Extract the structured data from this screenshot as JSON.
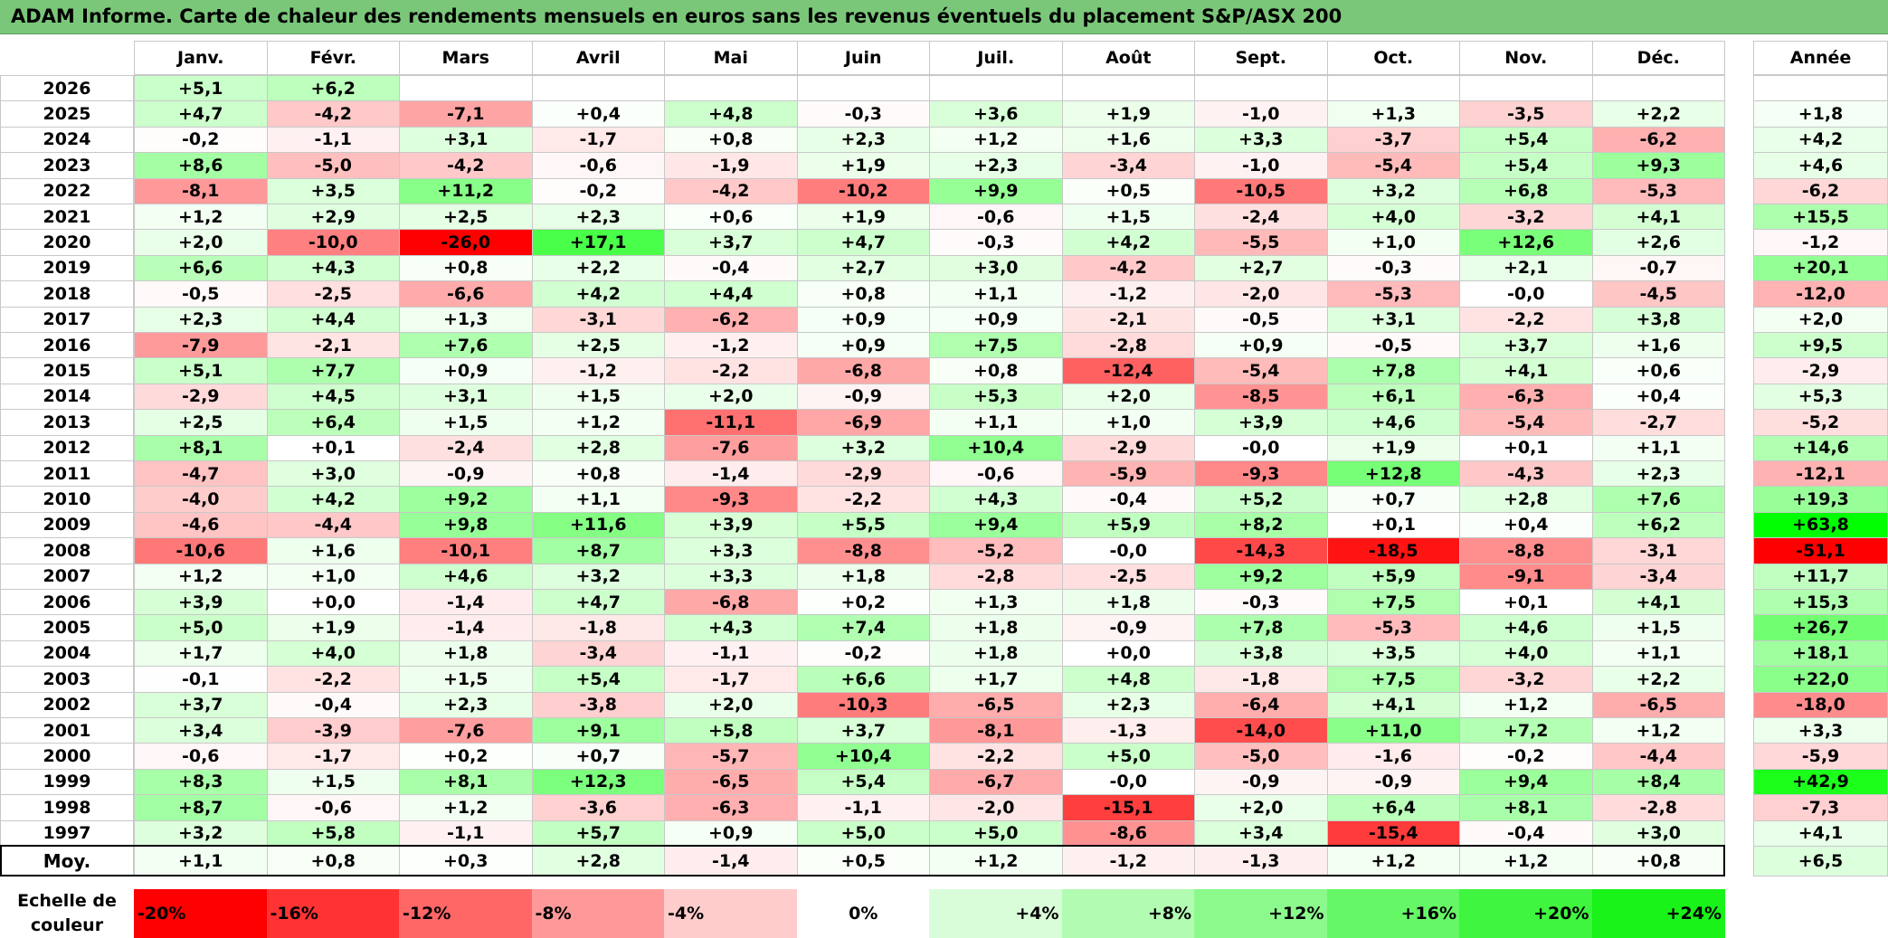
{
  "title": "ADAM Informe. Carte de chaleur des rendements mensuels en euros sans les revenus éventuels du placement S&P/ASX 200",
  "chart_data": {
    "type": "heatmap",
    "months": [
      "Janv.",
      "Févr.",
      "Mars",
      "Avril",
      "Mai",
      "Juin",
      "Juil.",
      "Août",
      "Sept.",
      "Oct.",
      "Nov.",
      "Déc."
    ],
    "annual_label": "Année",
    "average_label": "Moy.",
    "rows": [
      {
        "year": "2026",
        "values": [
          "+5,1",
          "+6,2",
          "",
          "",
          "",
          "",
          "",
          "",
          "",
          "",
          "",
          ""
        ],
        "annual": ""
      },
      {
        "year": "2025",
        "values": [
          "+4,7",
          "-4,2",
          "-7,1",
          "+0,4",
          "+4,8",
          "-0,3",
          "+3,6",
          "+1,9",
          "-1,0",
          "+1,3",
          "-3,5",
          "+2,2"
        ],
        "annual": "+1,8"
      },
      {
        "year": "2024",
        "values": [
          "-0,2",
          "-1,1",
          "+3,1",
          "-1,7",
          "+0,8",
          "+2,3",
          "+1,2",
          "+1,6",
          "+3,3",
          "-3,7",
          "+5,4",
          "-6,2"
        ],
        "annual": "+4,2"
      },
      {
        "year": "2023",
        "values": [
          "+8,6",
          "-5,0",
          "-4,2",
          "-0,6",
          "-1,9",
          "+1,9",
          "+2,3",
          "-3,4",
          "-1,0",
          "-5,4",
          "+5,4",
          "+9,3"
        ],
        "annual": "+4,6"
      },
      {
        "year": "2022",
        "values": [
          "-8,1",
          "+3,5",
          "+11,2",
          "-0,2",
          "-4,2",
          "-10,2",
          "+9,9",
          "+0,5",
          "-10,5",
          "+3,2",
          "+6,8",
          "-5,3"
        ],
        "annual": "-6,2"
      },
      {
        "year": "2021",
        "values": [
          "+1,2",
          "+2,9",
          "+2,5",
          "+2,3",
          "+0,6",
          "+1,9",
          "-0,6",
          "+1,5",
          "-2,4",
          "+4,0",
          "-3,2",
          "+4,1"
        ],
        "annual": "+15,5"
      },
      {
        "year": "2020",
        "values": [
          "+2,0",
          "-10,0",
          "-26,0",
          "+17,1",
          "+3,7",
          "+4,7",
          "-0,3",
          "+4,2",
          "-5,5",
          "+1,0",
          "+12,6",
          "+2,6"
        ],
        "annual": "-1,2"
      },
      {
        "year": "2019",
        "values": [
          "+6,6",
          "+4,3",
          "+0,8",
          "+2,2",
          "-0,4",
          "+2,7",
          "+3,0",
          "-4,2",
          "+2,7",
          "-0,3",
          "+2,1",
          "-0,7"
        ],
        "annual": "+20,1"
      },
      {
        "year": "2018",
        "values": [
          "-0,5",
          "-2,5",
          "-6,6",
          "+4,2",
          "+4,4",
          "+0,8",
          "+1,1",
          "-1,2",
          "-2,0",
          "-5,3",
          "-0,0",
          "-4,5"
        ],
        "annual": "-12,0"
      },
      {
        "year": "2017",
        "values": [
          "+2,3",
          "+4,4",
          "+1,3",
          "-3,1",
          "-6,2",
          "+0,9",
          "+0,9",
          "-2,1",
          "-0,5",
          "+3,1",
          "-2,2",
          "+3,8"
        ],
        "annual": "+2,0"
      },
      {
        "year": "2016",
        "values": [
          "-7,9",
          "-2,1",
          "+7,6",
          "+2,5",
          "-1,2",
          "+0,9",
          "+7,5",
          "-2,8",
          "+0,9",
          "-0,5",
          "+3,7",
          "+1,6"
        ],
        "annual": "+9,5"
      },
      {
        "year": "2015",
        "values": [
          "+5,1",
          "+7,7",
          "+0,9",
          "-1,2",
          "-2,2",
          "-6,8",
          "+0,8",
          "-12,4",
          "-5,4",
          "+7,8",
          "+4,1",
          "+0,6"
        ],
        "annual": "-2,9"
      },
      {
        "year": "2014",
        "values": [
          "-2,9",
          "+4,5",
          "+3,1",
          "+1,5",
          "+2,0",
          "-0,9",
          "+5,3",
          "+2,0",
          "-8,5",
          "+6,1",
          "-6,3",
          "+0,4"
        ],
        "annual": "+5,3"
      },
      {
        "year": "2013",
        "values": [
          "+2,5",
          "+6,4",
          "+1,5",
          "+1,2",
          "-11,1",
          "-6,9",
          "+1,1",
          "+1,0",
          "+3,9",
          "+4,6",
          "-5,4",
          "-2,7"
        ],
        "annual": "-5,2"
      },
      {
        "year": "2012",
        "values": [
          "+8,1",
          "+0,1",
          "-2,4",
          "+2,8",
          "-7,6",
          "+3,2",
          "+10,4",
          "-2,9",
          "-0,0",
          "+1,9",
          "+0,1",
          "+1,1"
        ],
        "annual": "+14,6"
      },
      {
        "year": "2011",
        "values": [
          "-4,7",
          "+3,0",
          "-0,9",
          "+0,8",
          "-1,4",
          "-2,9",
          "-0,6",
          "-5,9",
          "-9,3",
          "+12,8",
          "-4,3",
          "+2,3"
        ],
        "annual": "-12,1"
      },
      {
        "year": "2010",
        "values": [
          "-4,0",
          "+4,2",
          "+9,2",
          "+1,1",
          "-9,3",
          "-2,2",
          "+4,3",
          "-0,4",
          "+5,2",
          "+0,7",
          "+2,8",
          "+7,6"
        ],
        "annual": "+19,3"
      },
      {
        "year": "2009",
        "values": [
          "-4,6",
          "-4,4",
          "+9,8",
          "+11,6",
          "+3,9",
          "+5,5",
          "+9,4",
          "+5,9",
          "+8,2",
          "+0,1",
          "+0,4",
          "+6,2"
        ],
        "annual": "+63,8"
      },
      {
        "year": "2008",
        "values": [
          "-10,6",
          "+1,6",
          "-10,1",
          "+8,7",
          "+3,3",
          "-8,8",
          "-5,2",
          "-0,0",
          "-14,3",
          "-18,5",
          "-8,8",
          "-3,1"
        ],
        "annual": "-51,1"
      },
      {
        "year": "2007",
        "values": [
          "+1,2",
          "+1,0",
          "+4,6",
          "+3,2",
          "+3,3",
          "+1,8",
          "-2,8",
          "-2,5",
          "+9,2",
          "+5,9",
          "-9,1",
          "-3,4"
        ],
        "annual": "+11,7"
      },
      {
        "year": "2006",
        "values": [
          "+3,9",
          "+0,0",
          "-1,4",
          "+4,7",
          "-6,8",
          "+0,2",
          "+1,3",
          "+1,8",
          "-0,3",
          "+7,5",
          "+0,1",
          "+4,1"
        ],
        "annual": "+15,3"
      },
      {
        "year": "2005",
        "values": [
          "+5,0",
          "+1,9",
          "-1,4",
          "-1,8",
          "+4,3",
          "+7,4",
          "+1,8",
          "-0,9",
          "+7,8",
          "-5,3",
          "+4,6",
          "+1,5"
        ],
        "annual": "+26,7"
      },
      {
        "year": "2004",
        "values": [
          "+1,7",
          "+4,0",
          "+1,8",
          "-3,4",
          "-1,1",
          "-0,2",
          "+1,8",
          "+0,0",
          "+3,8",
          "+3,5",
          "+4,0",
          "+1,1"
        ],
        "annual": "+18,1"
      },
      {
        "year": "2003",
        "values": [
          "-0,1",
          "-2,2",
          "+1,5",
          "+5,4",
          "-1,7",
          "+6,6",
          "+1,7",
          "+4,8",
          "-1,8",
          "+7,5",
          "-3,2",
          "+2,2"
        ],
        "annual": "+22,0"
      },
      {
        "year": "2002",
        "values": [
          "+3,7",
          "-0,4",
          "+2,3",
          "-3,8",
          "+2,0",
          "-10,3",
          "-6,5",
          "+2,3",
          "-6,4",
          "+4,1",
          "+1,2",
          "-6,5"
        ],
        "annual": "-18,0"
      },
      {
        "year": "2001",
        "values": [
          "+3,4",
          "-3,9",
          "-7,6",
          "+9,1",
          "+5,8",
          "+3,7",
          "-8,1",
          "-1,3",
          "-14,0",
          "+11,0",
          "+7,2",
          "+1,2"
        ],
        "annual": "+3,3"
      },
      {
        "year": "2000",
        "values": [
          "-0,6",
          "-1,7",
          "+0,2",
          "+0,7",
          "-5,7",
          "+10,4",
          "-2,2",
          "+5,0",
          "-5,0",
          "-1,6",
          "-0,2",
          "-4,4"
        ],
        "annual": "-5,9"
      },
      {
        "year": "1999",
        "values": [
          "+8,3",
          "+1,5",
          "+8,1",
          "+12,3",
          "-6,5",
          "+5,4",
          "-6,7",
          "-0,0",
          "-0,9",
          "-0,9",
          "+9,4",
          "+8,4"
        ],
        "annual": "+42,9"
      },
      {
        "year": "1998",
        "values": [
          "+8,7",
          "-0,6",
          "+1,2",
          "-3,6",
          "-6,3",
          "-1,1",
          "-2,0",
          "-15,1",
          "+2,0",
          "+6,4",
          "+8,1",
          "-2,8"
        ],
        "annual": "-7,3"
      },
      {
        "year": "1997",
        "values": [
          "+3,2",
          "+5,8",
          "-1,1",
          "+5,7",
          "+0,9",
          "+5,0",
          "+5,0",
          "-8,6",
          "+3,4",
          "-15,4",
          "-0,4",
          "+3,0"
        ],
        "annual": "+4,1"
      }
    ],
    "averages": [
      "+1,1",
      "+0,8",
      "+0,3",
      "+2,8",
      "-1,4",
      "+0,5",
      "+1,2",
      "-1,2",
      "-1,3",
      "+1,2",
      "+1,2",
      "+0,8"
    ],
    "average_annual": "+6,5",
    "legend_label": "Echelle de couleur",
    "legend": [
      {
        "label": "-20%",
        "color": "#ff0000"
      },
      {
        "label": "-16%",
        "color": "#ff3333"
      },
      {
        "label": "-12%",
        "color": "#ff6666"
      },
      {
        "label": "-8%",
        "color": "#ff9999"
      },
      {
        "label": "-4%",
        "color": "#ffcccc"
      },
      {
        "label": "0%",
        "color": "#ffffff"
      },
      {
        "label": "+4%",
        "color": "#d9fdd9"
      },
      {
        "label": "+8%",
        "color": "#b2fbb2"
      },
      {
        "label": "+12%",
        "color": "#8cf98c"
      },
      {
        "label": "+16%",
        "color": "#66f766"
      },
      {
        "label": "+20%",
        "color": "#3ff53f"
      },
      {
        "label": "+24%",
        "color": "#19f319"
      }
    ]
  }
}
